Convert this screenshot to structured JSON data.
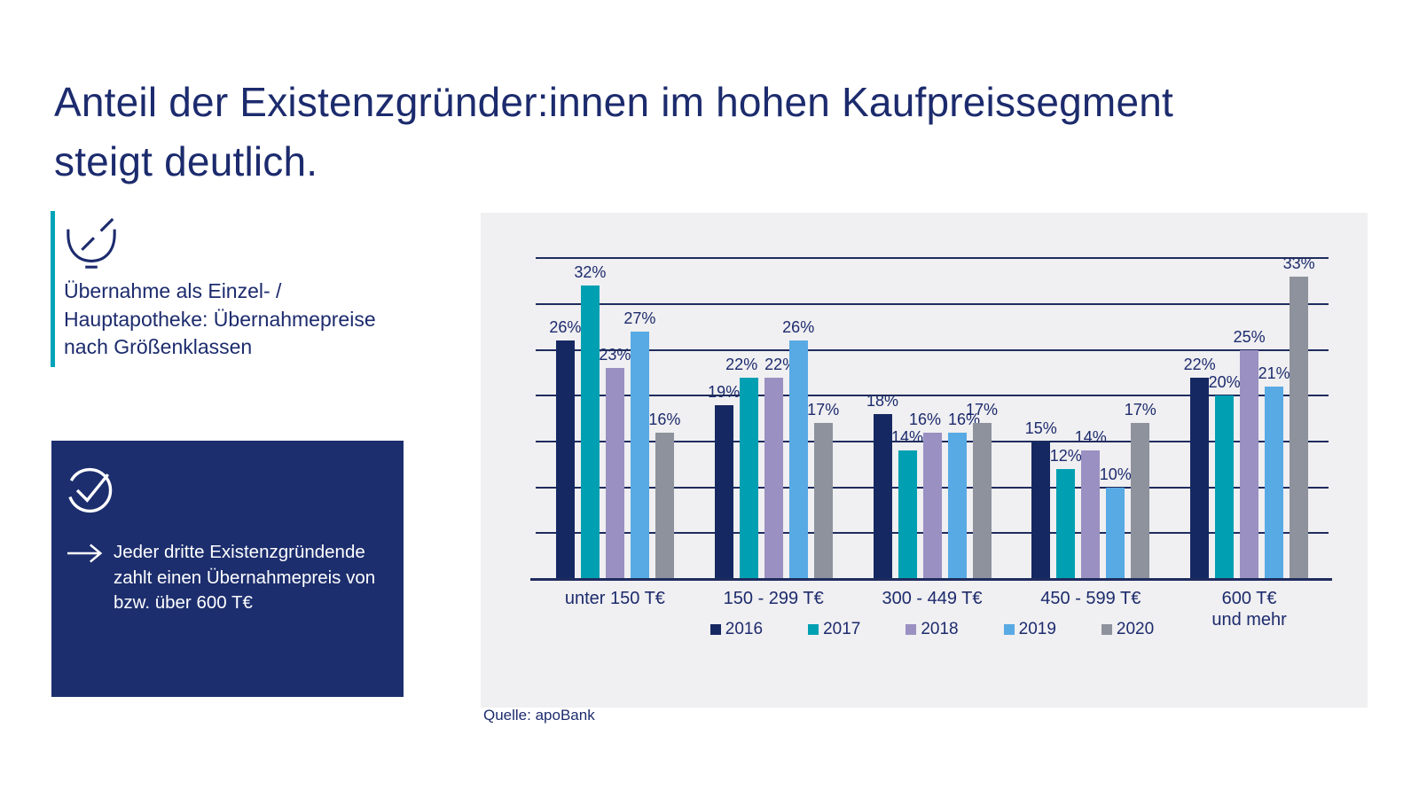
{
  "slide": {
    "title": "Anteil der Existenzgründer:innen im hohen Kaufpreissegment\nsteigt deutlich.",
    "subtitle": "Übernahme als Einzel- /\nHauptapotheke: Übernahmepreise\nnach Größenklassen",
    "callout": "Jeder dritte Existenzgründende\nzahlt einen Übernahmepreis von\nbzw. über 600 T€",
    "source": "Quelle: apoBank"
  },
  "icons": {
    "mortar": "mortar-pestle-icon",
    "check": "check-circle-icon",
    "arrow": "arrow-right-icon"
  },
  "colors": {
    "text_navy": "#1c2b6d",
    "accent_teal": "#00a4b8",
    "callout_bg": "#1c2e6e",
    "panel_bg": "#f0eff1",
    "gridline": "#1f2c5e"
  },
  "chart_data": {
    "type": "bar",
    "categories": [
      "unter 150 T€",
      "150 - 299 T€",
      "300 - 449 T€",
      "450 - 599 T€",
      "600 T€\nund mehr"
    ],
    "series": [
      {
        "name": "2016",
        "color": "#152862",
        "values": [
          26,
          19,
          18,
          15,
          22
        ]
      },
      {
        "name": "2017",
        "color": "#00a0b2",
        "values": [
          32,
          22,
          14,
          12,
          20
        ]
      },
      {
        "name": "2018",
        "color": "#9a90c2",
        "values": [
          23,
          22,
          16,
          14,
          25
        ]
      },
      {
        "name": "2019",
        "color": "#58aae4",
        "values": [
          27,
          26,
          16,
          10,
          21
        ]
      },
      {
        "name": "2020",
        "color": "#8d929c",
        "values": [
          16,
          17,
          17,
          17,
          33
        ]
      }
    ],
    "value_labels": true,
    "value_suffix": "%",
    "ylim": [
      0,
      35
    ],
    "gridline_step": 5,
    "grid": "on",
    "legend_position": "bottom",
    "yaxis_tick_labels": "none"
  }
}
